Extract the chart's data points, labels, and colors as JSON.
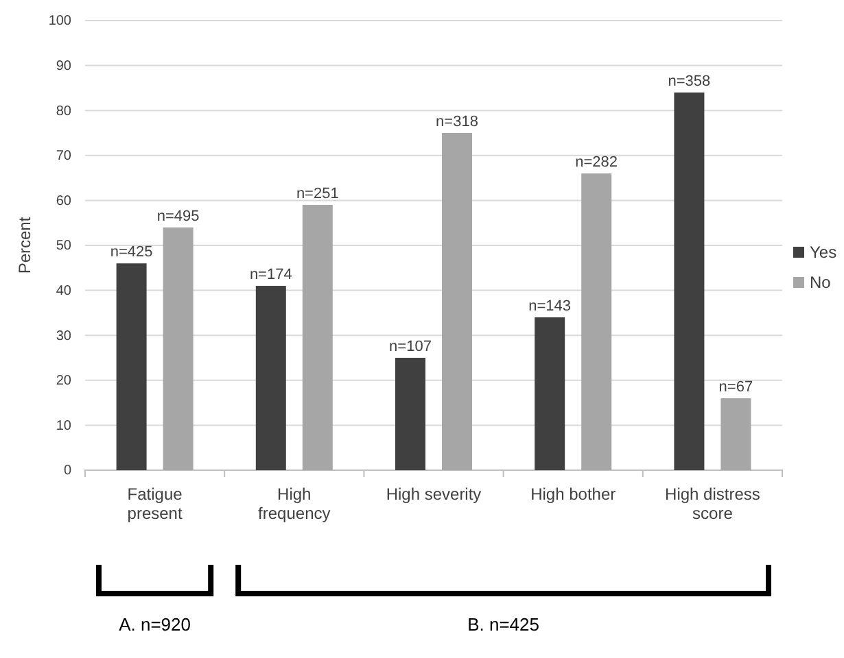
{
  "chart_data": {
    "type": "bar",
    "ylabel": "Percent",
    "categories": [
      "Fatigue present",
      "High frequency",
      "High severity",
      "High bother",
      "High distress score"
    ],
    "series": [
      {
        "name": "Yes",
        "color": "#404040",
        "values": [
          46,
          41,
          25,
          34,
          84
        ]
      },
      {
        "name": "No",
        "color": "#a6a6a6",
        "values": [
          54,
          59,
          75,
          66,
          16
        ]
      }
    ],
    "ylim": [
      0,
      100
    ],
    "yticks": [
      0,
      10,
      20,
      30,
      40,
      50,
      60,
      70,
      80,
      90,
      100
    ],
    "grid": "y",
    "legend": "right",
    "annotations": [
      "n=425",
      "n=174",
      "n=107",
      "n=143",
      "n=358",
      "n=495",
      "n=251",
      "n=318",
      "n=282",
      "n=67",
      "A. n=920",
      "B. n=425"
    ]
  }
}
